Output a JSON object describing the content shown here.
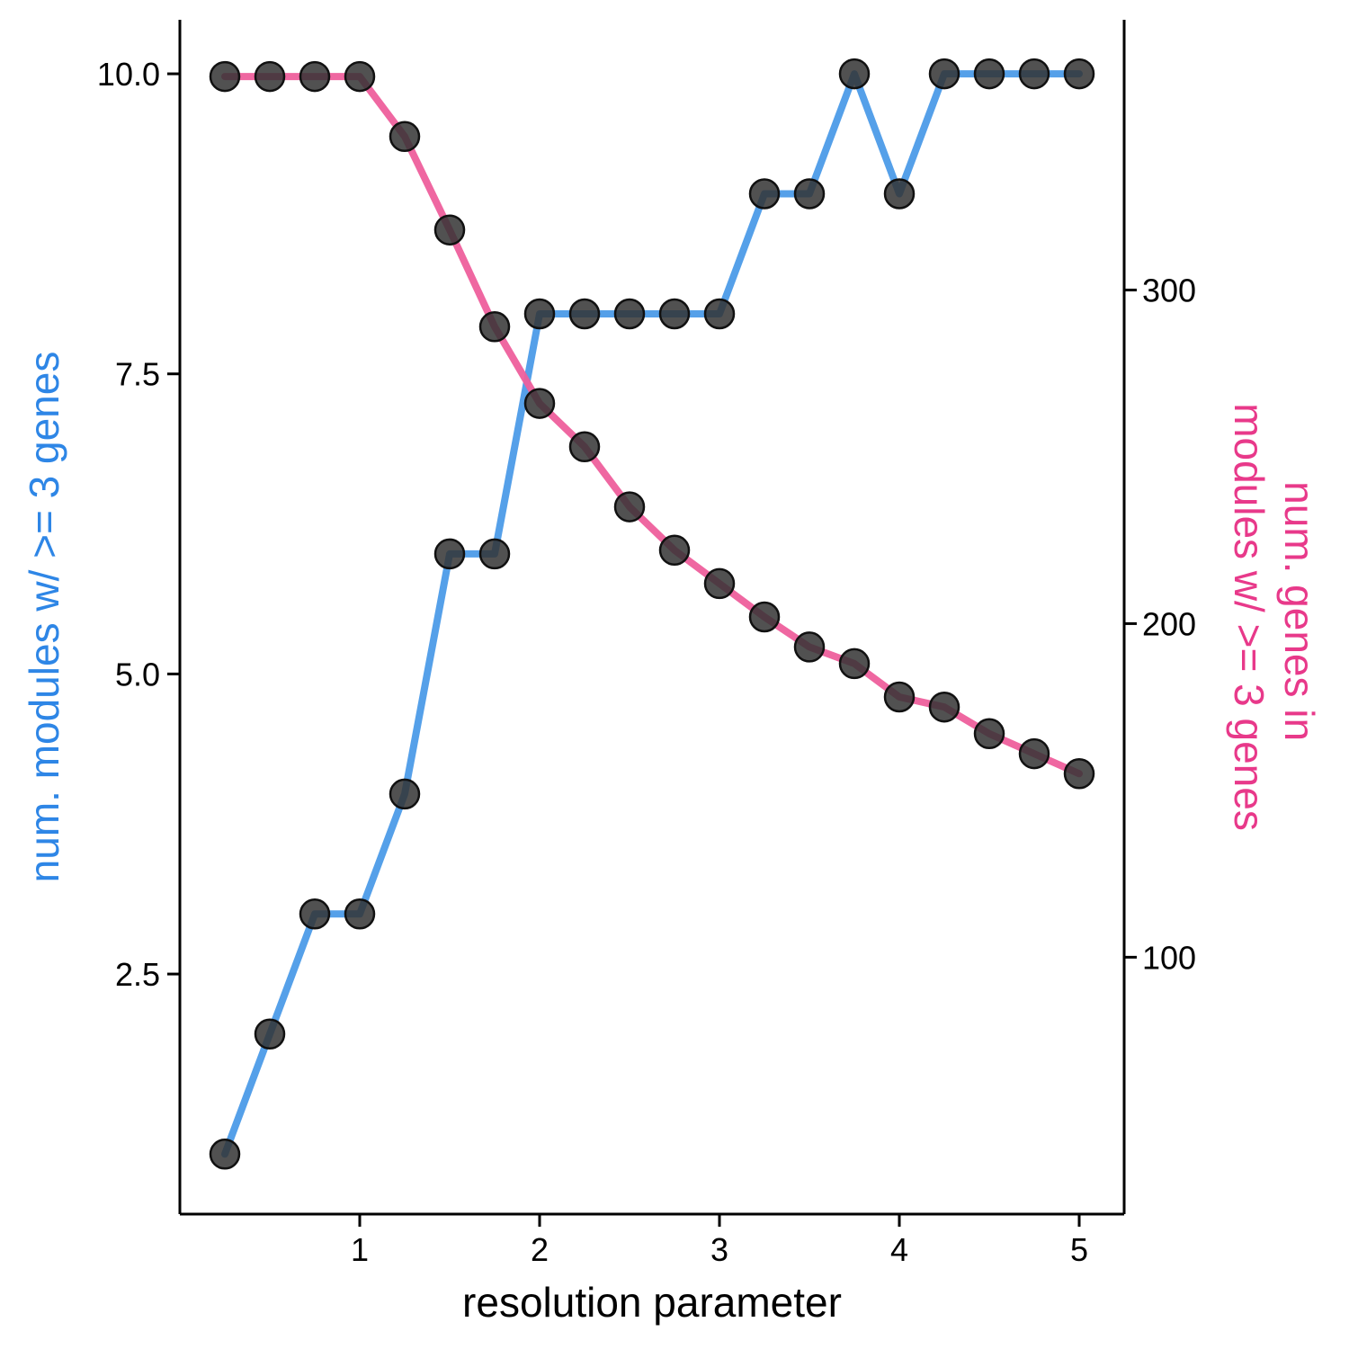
{
  "chart_data": {
    "type": "line",
    "xlabel": "resolution parameter",
    "ylabel_left": "num. modules w/ >= 3 genes",
    "ylabel_right_lines": [
      "num. genes in",
      "modules w/ >= 3 genes"
    ],
    "x": [
      0.25,
      0.5,
      0.75,
      1.0,
      1.25,
      1.5,
      1.75,
      2.0,
      2.25,
      2.5,
      2.75,
      3.0,
      3.25,
      3.5,
      3.75,
      4.0,
      4.25,
      4.5,
      4.75,
      5.0
    ],
    "xlim": [
      0.0,
      5.25
    ],
    "ylim_left": [
      0.5,
      10.45
    ],
    "ylim_right": [
      23,
      381
    ],
    "x_ticks": [
      1,
      2,
      3,
      4,
      5
    ],
    "x_tick_labels": [
      "1",
      "2",
      "3",
      "4",
      "5"
    ],
    "y_left_ticks": [
      2.5,
      5.0,
      7.5,
      10.0
    ],
    "y_left_tick_labels": [
      "2.5",
      "5.0",
      "7.5",
      "10.0"
    ],
    "y_right_ticks": [
      100,
      200,
      300
    ],
    "y_right_tick_labels": [
      "100",
      "200",
      "300"
    ],
    "grid": false,
    "series": [
      {
        "axis": "left",
        "color": "#4C9BE8",
        "values": [
          1,
          2,
          3,
          3,
          4,
          6,
          6,
          8,
          8,
          8,
          8,
          8,
          9,
          9,
          10,
          9,
          10,
          10,
          10,
          10
        ]
      },
      {
        "axis": "right",
        "color": "#EE5F9C",
        "values": [
          364,
          364,
          364,
          364,
          346,
          318,
          289,
          266,
          253,
          235,
          222,
          212,
          202,
          193,
          188,
          178,
          175,
          167,
          161,
          155
        ]
      }
    ],
    "colors": {
      "left_title": "#2E86E6",
      "right_title": "#E8398A",
      "marker_fill": "#333333",
      "axis": "#000000"
    }
  }
}
